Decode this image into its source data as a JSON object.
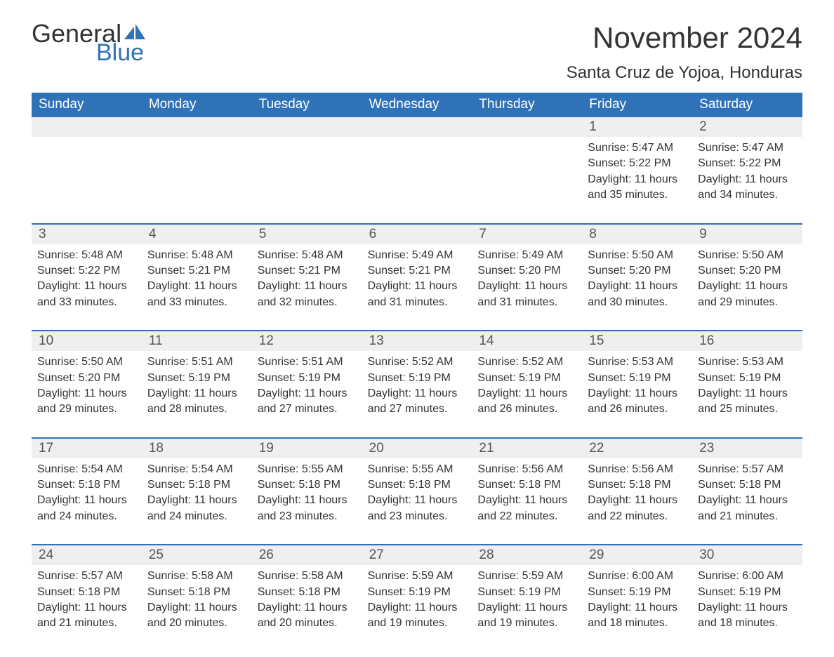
{
  "logo": {
    "text1": "General",
    "text2": "Blue",
    "sail_color": "#2f72b8"
  },
  "title": "November 2024",
  "location": "Santa Cruz de Yojoa, Honduras",
  "header_bg": "#2f72b8",
  "weekdays": [
    "Sunday",
    "Monday",
    "Tuesday",
    "Wednesday",
    "Thursday",
    "Friday",
    "Saturday"
  ],
  "weeks": [
    [
      null,
      null,
      null,
      null,
      null,
      {
        "n": "1",
        "sunrise": "Sunrise: 5:47 AM",
        "sunset": "Sunset: 5:22 PM",
        "day1": "Daylight: 11 hours",
        "day2": "and 35 minutes."
      },
      {
        "n": "2",
        "sunrise": "Sunrise: 5:47 AM",
        "sunset": "Sunset: 5:22 PM",
        "day1": "Daylight: 11 hours",
        "day2": "and 34 minutes."
      }
    ],
    [
      {
        "n": "3",
        "sunrise": "Sunrise: 5:48 AM",
        "sunset": "Sunset: 5:22 PM",
        "day1": "Daylight: 11 hours",
        "day2": "and 33 minutes."
      },
      {
        "n": "4",
        "sunrise": "Sunrise: 5:48 AM",
        "sunset": "Sunset: 5:21 PM",
        "day1": "Daylight: 11 hours",
        "day2": "and 33 minutes."
      },
      {
        "n": "5",
        "sunrise": "Sunrise: 5:48 AM",
        "sunset": "Sunset: 5:21 PM",
        "day1": "Daylight: 11 hours",
        "day2": "and 32 minutes."
      },
      {
        "n": "6",
        "sunrise": "Sunrise: 5:49 AM",
        "sunset": "Sunset: 5:21 PM",
        "day1": "Daylight: 11 hours",
        "day2": "and 31 minutes."
      },
      {
        "n": "7",
        "sunrise": "Sunrise: 5:49 AM",
        "sunset": "Sunset: 5:20 PM",
        "day1": "Daylight: 11 hours",
        "day2": "and 31 minutes."
      },
      {
        "n": "8",
        "sunrise": "Sunrise: 5:50 AM",
        "sunset": "Sunset: 5:20 PM",
        "day1": "Daylight: 11 hours",
        "day2": "and 30 minutes."
      },
      {
        "n": "9",
        "sunrise": "Sunrise: 5:50 AM",
        "sunset": "Sunset: 5:20 PM",
        "day1": "Daylight: 11 hours",
        "day2": "and 29 minutes."
      }
    ],
    [
      {
        "n": "10",
        "sunrise": "Sunrise: 5:50 AM",
        "sunset": "Sunset: 5:20 PM",
        "day1": "Daylight: 11 hours",
        "day2": "and 29 minutes."
      },
      {
        "n": "11",
        "sunrise": "Sunrise: 5:51 AM",
        "sunset": "Sunset: 5:19 PM",
        "day1": "Daylight: 11 hours",
        "day2": "and 28 minutes."
      },
      {
        "n": "12",
        "sunrise": "Sunrise: 5:51 AM",
        "sunset": "Sunset: 5:19 PM",
        "day1": "Daylight: 11 hours",
        "day2": "and 27 minutes."
      },
      {
        "n": "13",
        "sunrise": "Sunrise: 5:52 AM",
        "sunset": "Sunset: 5:19 PM",
        "day1": "Daylight: 11 hours",
        "day2": "and 27 minutes."
      },
      {
        "n": "14",
        "sunrise": "Sunrise: 5:52 AM",
        "sunset": "Sunset: 5:19 PM",
        "day1": "Daylight: 11 hours",
        "day2": "and 26 minutes."
      },
      {
        "n": "15",
        "sunrise": "Sunrise: 5:53 AM",
        "sunset": "Sunset: 5:19 PM",
        "day1": "Daylight: 11 hours",
        "day2": "and 26 minutes."
      },
      {
        "n": "16",
        "sunrise": "Sunrise: 5:53 AM",
        "sunset": "Sunset: 5:19 PM",
        "day1": "Daylight: 11 hours",
        "day2": "and 25 minutes."
      }
    ],
    [
      {
        "n": "17",
        "sunrise": "Sunrise: 5:54 AM",
        "sunset": "Sunset: 5:18 PM",
        "day1": "Daylight: 11 hours",
        "day2": "and 24 minutes."
      },
      {
        "n": "18",
        "sunrise": "Sunrise: 5:54 AM",
        "sunset": "Sunset: 5:18 PM",
        "day1": "Daylight: 11 hours",
        "day2": "and 24 minutes."
      },
      {
        "n": "19",
        "sunrise": "Sunrise: 5:55 AM",
        "sunset": "Sunset: 5:18 PM",
        "day1": "Daylight: 11 hours",
        "day2": "and 23 minutes."
      },
      {
        "n": "20",
        "sunrise": "Sunrise: 5:55 AM",
        "sunset": "Sunset: 5:18 PM",
        "day1": "Daylight: 11 hours",
        "day2": "and 23 minutes."
      },
      {
        "n": "21",
        "sunrise": "Sunrise: 5:56 AM",
        "sunset": "Sunset: 5:18 PM",
        "day1": "Daylight: 11 hours",
        "day2": "and 22 minutes."
      },
      {
        "n": "22",
        "sunrise": "Sunrise: 5:56 AM",
        "sunset": "Sunset: 5:18 PM",
        "day1": "Daylight: 11 hours",
        "day2": "and 22 minutes."
      },
      {
        "n": "23",
        "sunrise": "Sunrise: 5:57 AM",
        "sunset": "Sunset: 5:18 PM",
        "day1": "Daylight: 11 hours",
        "day2": "and 21 minutes."
      }
    ],
    [
      {
        "n": "24",
        "sunrise": "Sunrise: 5:57 AM",
        "sunset": "Sunset: 5:18 PM",
        "day1": "Daylight: 11 hours",
        "day2": "and 21 minutes."
      },
      {
        "n": "25",
        "sunrise": "Sunrise: 5:58 AM",
        "sunset": "Sunset: 5:18 PM",
        "day1": "Daylight: 11 hours",
        "day2": "and 20 minutes."
      },
      {
        "n": "26",
        "sunrise": "Sunrise: 5:58 AM",
        "sunset": "Sunset: 5:18 PM",
        "day1": "Daylight: 11 hours",
        "day2": "and 20 minutes."
      },
      {
        "n": "27",
        "sunrise": "Sunrise: 5:59 AM",
        "sunset": "Sunset: 5:19 PM",
        "day1": "Daylight: 11 hours",
        "day2": "and 19 minutes."
      },
      {
        "n": "28",
        "sunrise": "Sunrise: 5:59 AM",
        "sunset": "Sunset: 5:19 PM",
        "day1": "Daylight: 11 hours",
        "day2": "and 19 minutes."
      },
      {
        "n": "29",
        "sunrise": "Sunrise: 6:00 AM",
        "sunset": "Sunset: 5:19 PM",
        "day1": "Daylight: 11 hours",
        "day2": "and 18 minutes."
      },
      {
        "n": "30",
        "sunrise": "Sunrise: 6:00 AM",
        "sunset": "Sunset: 5:19 PM",
        "day1": "Daylight: 11 hours",
        "day2": "and 18 minutes."
      }
    ]
  ]
}
